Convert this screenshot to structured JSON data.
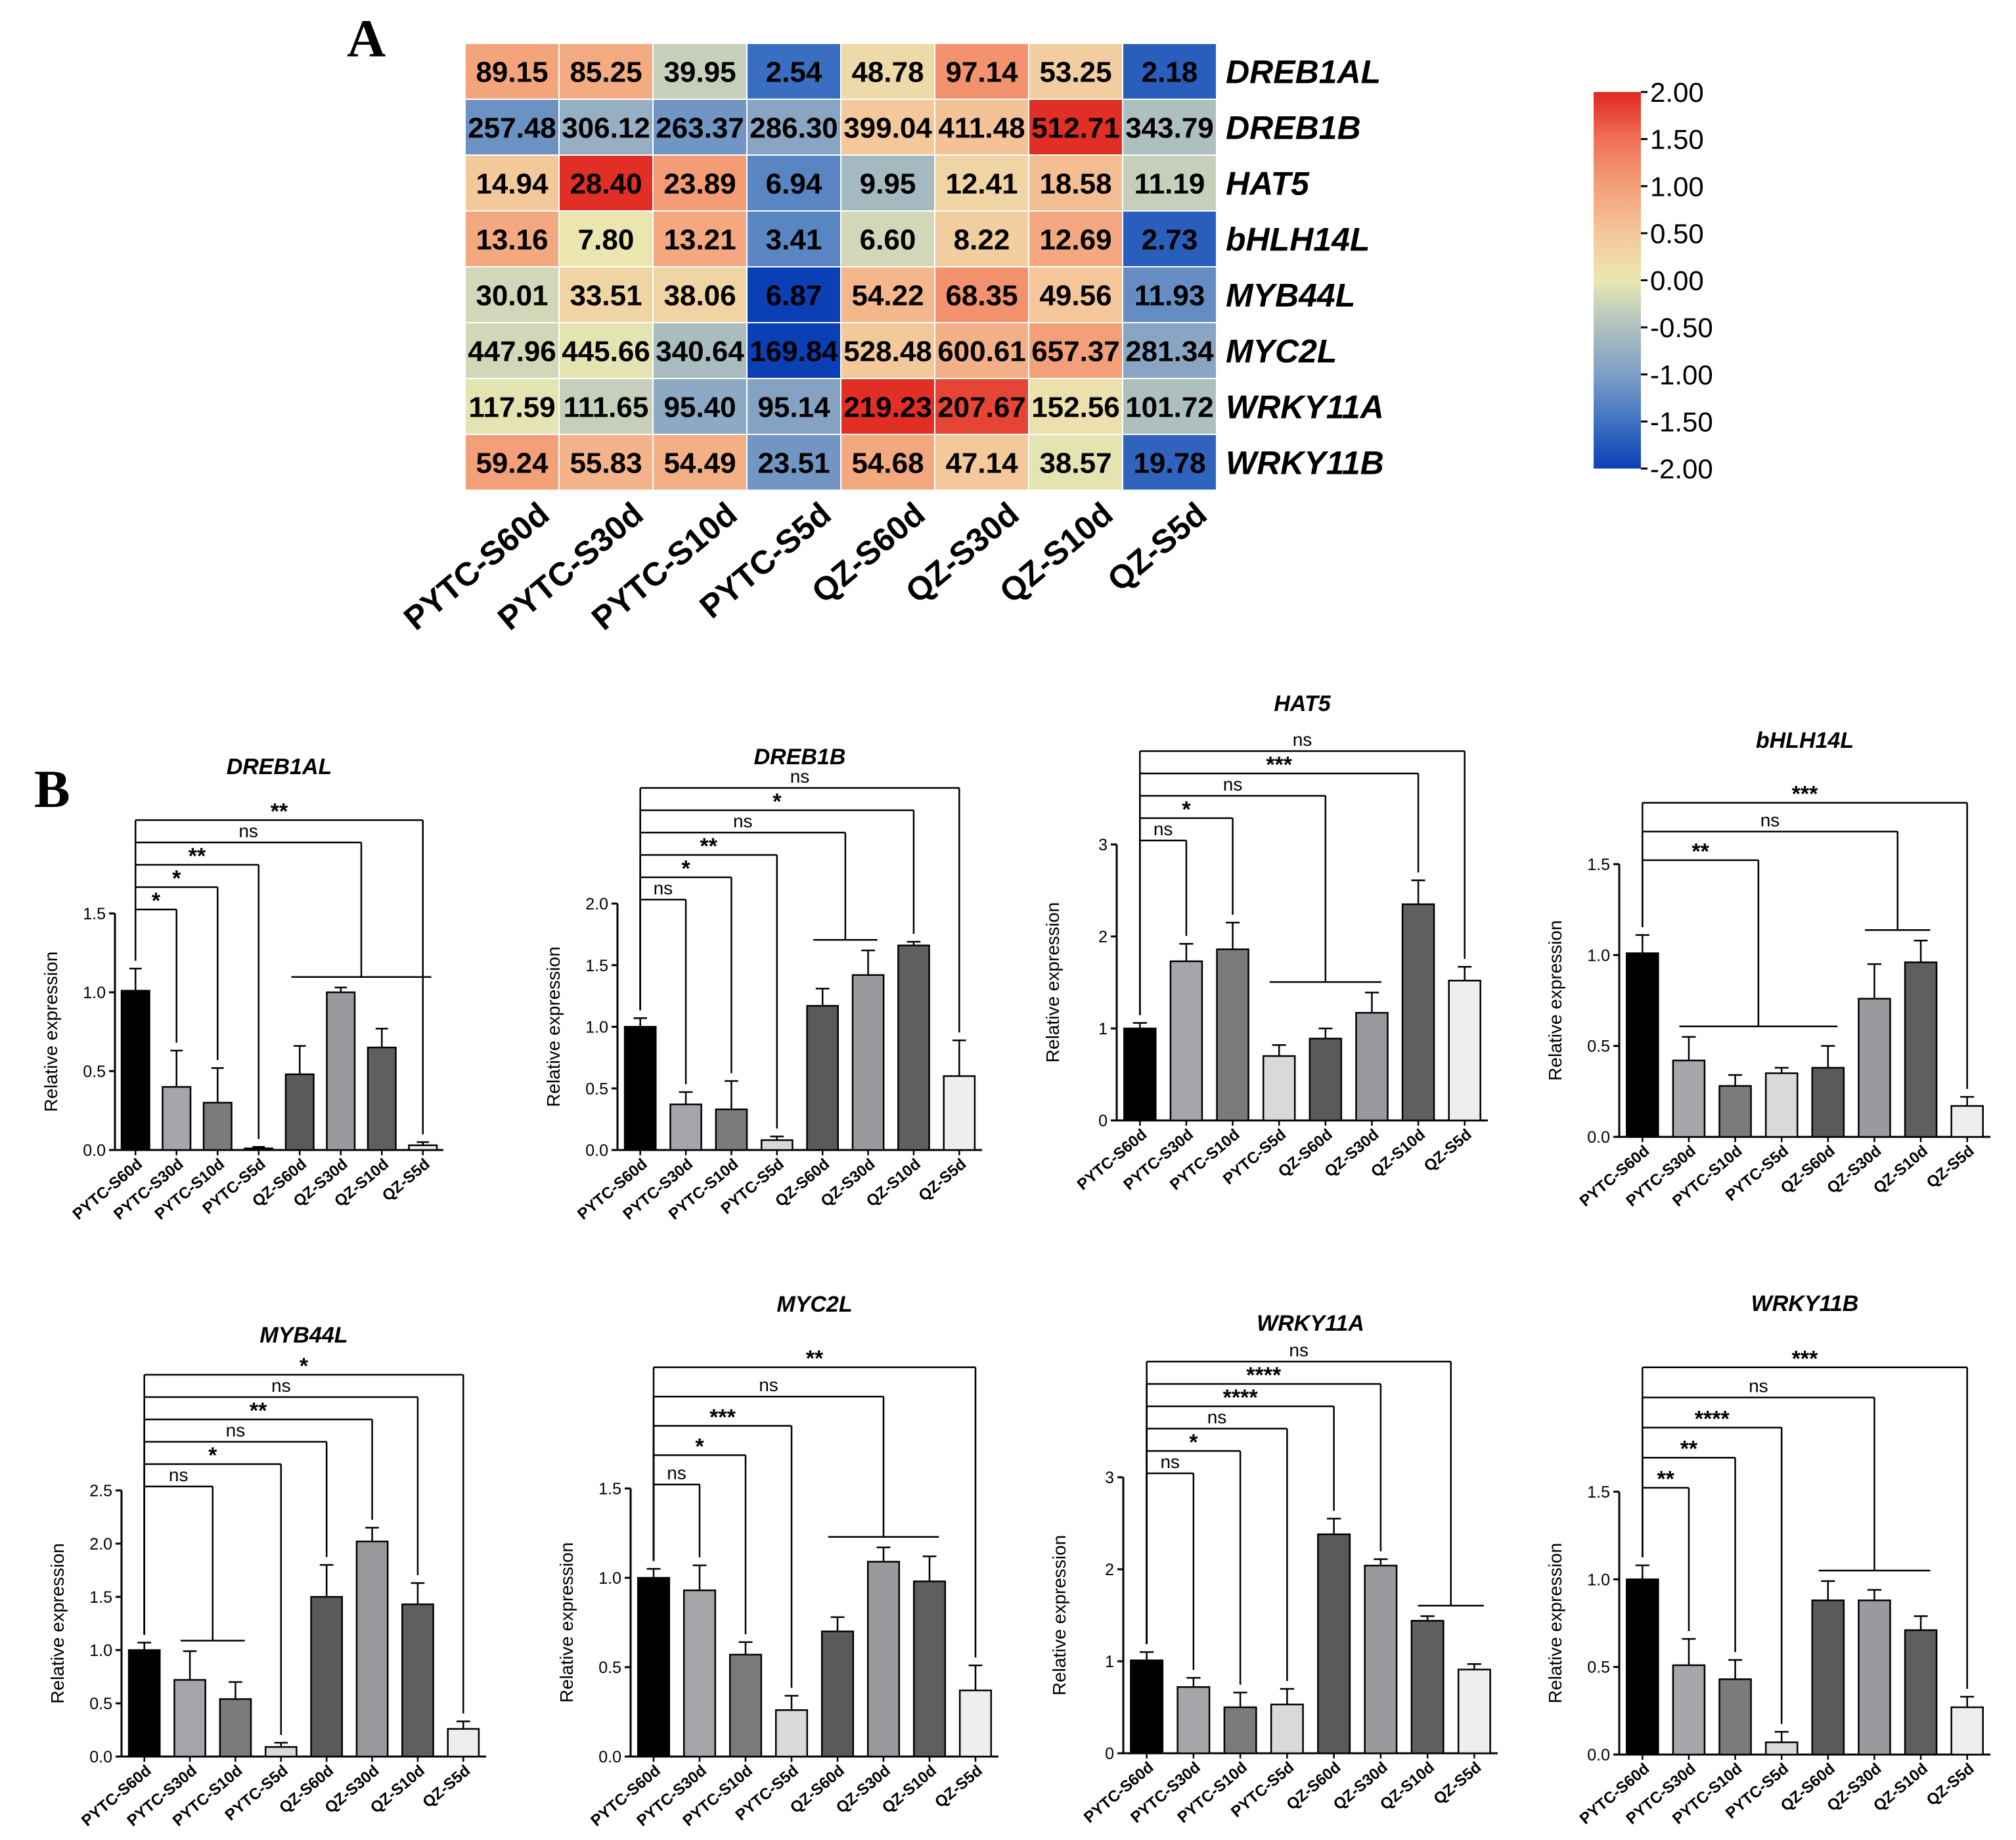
{
  "panel_labels": {
    "a": "A",
    "b": "B"
  },
  "colors": {
    "bars": [
      "#000000",
      "#a6a6aa",
      "#7b7b7b",
      "#d9d9d9",
      "#5a5a5a",
      "#9a9a9e",
      "#5f5f5f",
      "#eeeeee"
    ],
    "heatmap_scale": [
      "#0b3fb5",
      "#3f73c2",
      "#7f9fc4",
      "#aebfbf",
      "#eae8b2",
      "#f4c69a",
      "#f3a078",
      "#ef7058",
      "#e0281f"
    ]
  },
  "chart_data": [
    {
      "type": "heatmap",
      "id": "heatmap",
      "columns": [
        "PYTC-S60d",
        "PYTC-S30d",
        "PYTC-S10d",
        "PYTC-S5d",
        "QZ-S60d",
        "QZ-S30d",
        "QZ-S10d",
        "QZ-S5d"
      ],
      "rows": [
        "DREB1AL",
        "DREB1B",
        "HAT5",
        "bHLH14L",
        "MYB44L",
        "MYC2L",
        "WRKY11A",
        "WRKY11B"
      ],
      "values": [
        [
          "89.15",
          "85.25",
          "39.95",
          "2.54",
          "48.78",
          "97.14",
          "53.25",
          "2.18"
        ],
        [
          "257.48",
          "306.12",
          "263.37",
          "286.30",
          "399.04",
          "411.48",
          "512.71",
          "343.79"
        ],
        [
          "14.94",
          "28.40",
          "23.89",
          "6.94",
          "9.95",
          "12.41",
          "18.58",
          "11.19"
        ],
        [
          "13.16",
          "7.80",
          "13.21",
          "3.41",
          "6.60",
          "8.22",
          "12.69",
          "2.73"
        ],
        [
          "30.01",
          "33.51",
          "38.06",
          "6.87",
          "54.22",
          "68.35",
          "49.56",
          "11.93"
        ],
        [
          "447.96",
          "445.66",
          "340.64",
          "169.84",
          "528.48",
          "600.61",
          "657.37",
          "281.34"
        ],
        [
          "117.59",
          "111.65",
          "95.40",
          "95.14",
          "219.23",
          "207.67",
          "152.56",
          "101.72"
        ],
        [
          "59.24",
          "55.83",
          "54.49",
          "23.51",
          "54.68",
          "47.14",
          "38.57",
          "19.78"
        ]
      ],
      "scaled": [
        [
          0.95,
          0.85,
          -0.3,
          -1.55,
          0.2,
          1.15,
          0.4,
          -1.7
        ],
        [
          -1.15,
          -0.75,
          -1.1,
          -0.9,
          0.45,
          0.55,
          1.95,
          -0.5
        ],
        [
          0.45,
          1.95,
          1.05,
          -1.3,
          -0.6,
          0.3,
          0.6,
          -0.3
        ],
        [
          0.9,
          0.05,
          0.9,
          -1.3,
          -0.2,
          0.4,
          0.9,
          -1.7
        ],
        [
          -0.2,
          0.3,
          0.3,
          -2.0,
          0.7,
          1.15,
          0.5,
          -1.2
        ],
        [
          -0.2,
          -0.05,
          -0.55,
          -2.0,
          0.45,
          0.8,
          1.0,
          -0.9
        ],
        [
          -0.05,
          -0.3,
          -0.85,
          -0.95,
          1.95,
          1.8,
          0.1,
          -0.5
        ],
        [
          1.0,
          0.75,
          0.8,
          -1.1,
          0.9,
          0.45,
          -0.05,
          -1.65
        ]
      ],
      "colorbar": {
        "min": -2.0,
        "max": 2.0,
        "ticks": [
          "2.00",
          "1.50",
          "1.00",
          "0.50",
          "0.00",
          "-0.50",
          "-1.00",
          "-1.50",
          "-2.00"
        ]
      }
    },
    {
      "type": "bar",
      "id": "dreb1al",
      "title": "DREB1AL",
      "ylabel": "Relative expression",
      "categories": [
        "PYTC-S60d",
        "PYTC-S30d",
        "PYTC-S10d",
        "PYTC-S5d",
        "QZ-S60d",
        "QZ-S30d",
        "QZ-S10d",
        "QZ-S5d"
      ],
      "values": [
        1.01,
        0.4,
        0.3,
        0.01,
        0.48,
        1.0,
        0.65,
        0.03
      ],
      "errors": [
        0.14,
        0.23,
        0.22,
        0.01,
        0.18,
        0.03,
        0.12,
        0.02
      ],
      "ylim": [
        0,
        1.5
      ],
      "yticks": [
        "0.0",
        "0.5",
        "1.0",
        "1.5"
      ],
      "ytick_values": [
        0,
        0.5,
        1.0,
        1.5
      ],
      "comparisons": [
        {
          "label": "*",
          "to": 1
        },
        {
          "label": "*",
          "to": 2
        },
        {
          "label": "**",
          "to": 3
        },
        {
          "label": "ns",
          "to": [
            4,
            7
          ]
        },
        {
          "label": "**",
          "to": 7
        }
      ]
    },
    {
      "type": "bar",
      "id": "dreb1b",
      "title": "DREB1B",
      "ylabel": "Relative expression",
      "categories": [
        "PYTC-S60d",
        "PYTC-S30d",
        "PYTC-S10d",
        "PYTC-S5d",
        "QZ-S60d",
        "QZ-S30d",
        "QZ-S10d",
        "QZ-S5d"
      ],
      "values": [
        1.0,
        0.37,
        0.33,
        0.08,
        1.17,
        1.42,
        1.66,
        0.6
      ],
      "errors": [
        0.07,
        0.1,
        0.23,
        0.03,
        0.14,
        0.2,
        0.03,
        0.29
      ],
      "ylim": [
        0,
        2.0
      ],
      "yticks": [
        "0.0",
        "0.5",
        "1.0",
        "1.5",
        "2.0"
      ],
      "ytick_values": [
        0,
        0.5,
        1.0,
        1.5,
        2.0
      ],
      "comparisons": [
        {
          "label": "ns",
          "to": 1
        },
        {
          "label": "*",
          "to": 2
        },
        {
          "label": "**",
          "to": 3
        },
        {
          "label": "ns",
          "to": [
            4,
            5
          ]
        },
        {
          "label": "*",
          "to": 6
        },
        {
          "label": "ns",
          "to": 7
        }
      ]
    },
    {
      "type": "bar",
      "id": "hat5",
      "title": "HAT5",
      "ylabel": "Relative expression",
      "categories": [
        "PYTC-S60d",
        "PYTC-S30d",
        "PYTC-S10d",
        "PYTC-S5d",
        "QZ-S60d",
        "QZ-S30d",
        "QZ-S10d",
        "QZ-S5d"
      ],
      "values": [
        1.0,
        1.73,
        1.86,
        0.7,
        0.89,
        1.17,
        2.35,
        1.52
      ],
      "errors": [
        0.06,
        0.19,
        0.29,
        0.12,
        0.11,
        0.22,
        0.26,
        0.15
      ],
      "ylim": [
        0,
        3
      ],
      "yticks": [
        "0",
        "1",
        "2",
        "3"
      ],
      "ytick_values": [
        0,
        1,
        2,
        3
      ],
      "comparisons": [
        {
          "label": "ns",
          "to": 1
        },
        {
          "label": "*",
          "to": 2
        },
        {
          "label": "ns",
          "to": [
            3,
            5
          ]
        },
        {
          "label": "***",
          "to": 6
        },
        {
          "label": "ns",
          "to": 7
        }
      ]
    },
    {
      "type": "bar",
      "id": "bhlh14l",
      "title": "bHLH14L",
      "ylabel": "Relative expression",
      "categories": [
        "PYTC-S60d",
        "PYTC-S30d",
        "PYTC-S10d",
        "PYTC-S5d",
        "QZ-S60d",
        "QZ-S30d",
        "QZ-S10d",
        "QZ-S5d"
      ],
      "values": [
        1.01,
        0.42,
        0.28,
        0.35,
        0.38,
        0.76,
        0.96,
        0.17
      ],
      "errors": [
        0.1,
        0.13,
        0.06,
        0.03,
        0.12,
        0.19,
        0.12,
        0.05
      ],
      "ylim": [
        0,
        1.5
      ],
      "yticks": [
        "0.0",
        "0.5",
        "1.0",
        "1.5"
      ],
      "ytick_values": [
        0,
        0.5,
        1.0,
        1.5
      ],
      "comparisons": [
        {
          "label": "**",
          "to": [
            1,
            4
          ]
        },
        {
          "label": "ns",
          "to": [
            5,
            6
          ]
        },
        {
          "label": "***",
          "to": 7
        }
      ]
    },
    {
      "type": "bar",
      "id": "myb44l",
      "title": "MYB44L",
      "ylabel": "Relative expression",
      "categories": [
        "PYTC-S60d",
        "PYTC-S30d",
        "PYTC-S10d",
        "PYTC-S5d",
        "QZ-S60d",
        "QZ-S30d",
        "QZ-S10d",
        "QZ-S5d"
      ],
      "values": [
        1.0,
        0.72,
        0.54,
        0.09,
        1.5,
        2.02,
        1.43,
        0.26
      ],
      "errors": [
        0.07,
        0.27,
        0.16,
        0.04,
        0.3,
        0.13,
        0.2,
        0.07
      ],
      "ylim": [
        0,
        2.5
      ],
      "yticks": [
        "0.0",
        "0.5",
        "1.0",
        "1.5",
        "2.0",
        "2.5"
      ],
      "ytick_values": [
        0,
        0.5,
        1.0,
        1.5,
        2.0,
        2.5
      ],
      "comparisons": [
        {
          "label": "ns",
          "to": [
            1,
            2
          ]
        },
        {
          "label": "*",
          "to": 3
        },
        {
          "label": "ns",
          "to": 4
        },
        {
          "label": "**",
          "to": 5
        },
        {
          "label": "ns",
          "to": 6
        },
        {
          "label": "*",
          "to": 7
        }
      ]
    },
    {
      "type": "bar",
      "id": "myc2l",
      "title": "MYC2L",
      "ylabel": "Relative expression",
      "categories": [
        "PYTC-S60d",
        "PYTC-S30d",
        "PYTC-S10d",
        "PYTC-S5d",
        "QZ-S60d",
        "QZ-S30d",
        "QZ-S10d",
        "QZ-S5d"
      ],
      "values": [
        1.0,
        0.93,
        0.57,
        0.26,
        0.7,
        1.09,
        0.98,
        0.37
      ],
      "errors": [
        0.05,
        0.14,
        0.07,
        0.08,
        0.08,
        0.08,
        0.14,
        0.14
      ],
      "ylim": [
        0,
        1.5
      ],
      "yticks": [
        "0.0",
        "0.5",
        "1.0",
        "1.5"
      ],
      "ytick_values": [
        0,
        0.5,
        1.0,
        1.5
      ],
      "comparisons": [
        {
          "label": "ns",
          "to": 1
        },
        {
          "label": "*",
          "to": 2
        },
        {
          "label": "***",
          "to": 3
        },
        {
          "label": "ns",
          "to": [
            4,
            6
          ]
        },
        {
          "label": "**",
          "to": 7
        }
      ]
    },
    {
      "type": "bar",
      "id": "wrky11a",
      "title": "WRKY11A",
      "ylabel": "Relative expression",
      "categories": [
        "PYTC-S60d",
        "PYTC-S30d",
        "PYTC-S10d",
        "PYTC-S5d",
        "QZ-S60d",
        "QZ-S30d",
        "QZ-S10d",
        "QZ-S5d"
      ],
      "values": [
        1.01,
        0.72,
        0.5,
        0.53,
        2.38,
        2.04,
        1.44,
        0.91
      ],
      "errors": [
        0.09,
        0.1,
        0.16,
        0.17,
        0.17,
        0.07,
        0.05,
        0.06
      ],
      "ylim": [
        0,
        3
      ],
      "yticks": [
        "0",
        "1",
        "2",
        "3"
      ],
      "ytick_values": [
        0,
        1,
        2,
        3
      ],
      "comparisons": [
        {
          "label": "ns",
          "to": 1
        },
        {
          "label": "*",
          "to": 2
        },
        {
          "label": "ns",
          "to": 3
        },
        {
          "label": "****",
          "to": 4
        },
        {
          "label": "****",
          "to": 5
        },
        {
          "label": "ns",
          "to": [
            6,
            7
          ]
        }
      ]
    },
    {
      "type": "bar",
      "id": "wrky11b",
      "title": "WRKY11B",
      "ylabel": "Relative expression",
      "categories": [
        "PYTC-S60d",
        "PYTC-S30d",
        "PYTC-S10d",
        "PYTC-S5d",
        "QZ-S60d",
        "QZ-S30d",
        "QZ-S10d",
        "QZ-S5d"
      ],
      "values": [
        1.0,
        0.51,
        0.43,
        0.07,
        0.88,
        0.88,
        0.71,
        0.27
      ],
      "errors": [
        0.08,
        0.15,
        0.11,
        0.06,
        0.11,
        0.06,
        0.08,
        0.06
      ],
      "ylim": [
        0,
        1.5
      ],
      "yticks": [
        "0.0",
        "0.5",
        "1.0",
        "1.5"
      ],
      "ytick_values": [
        0,
        0.5,
        1.0,
        1.5
      ],
      "comparisons": [
        {
          "label": "**",
          "to": 1
        },
        {
          "label": "**",
          "to": 2
        },
        {
          "label": "****",
          "to": 3
        },
        {
          "label": "ns",
          "to": [
            4,
            6
          ]
        },
        {
          "label": "***",
          "to": 7
        }
      ]
    }
  ]
}
